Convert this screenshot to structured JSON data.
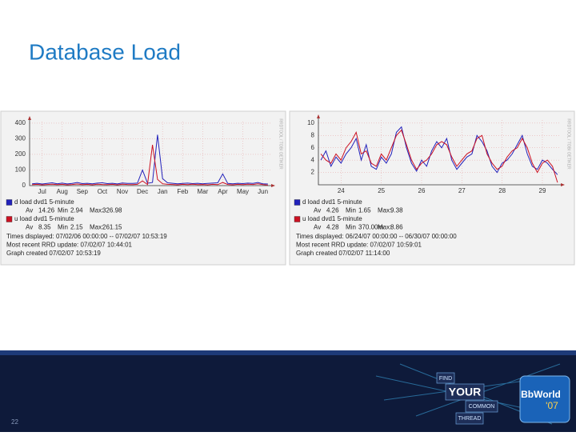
{
  "slide": {
    "title": "Database Load",
    "page_number": "22"
  },
  "branding": {
    "find": "FIND",
    "your": "YOUR",
    "common": "COMMON",
    "thread": "THREAD",
    "event": "BbWorld",
    "year": "'07"
  },
  "chart_data": [
    {
      "type": "line",
      "watermark": "RRDTOOL / TOBI OETIKER",
      "categories": [
        null,
        null,
        "Jul",
        null,
        null,
        null,
        "Aug",
        null,
        null,
        null,
        "Sep",
        null,
        null,
        null,
        "Oct",
        null,
        null,
        null,
        "Nov",
        null,
        null,
        null,
        "Dec",
        null,
        null,
        null,
        "Jan",
        null,
        null,
        null,
        "Feb",
        null,
        null,
        null,
        "Mar",
        null,
        null,
        null,
        "Apr",
        null,
        null,
        null,
        "May",
        null,
        null,
        null,
        "Jun",
        null
      ],
      "ylim": [
        0,
        410
      ],
      "yticks": [
        0,
        100,
        200,
        300,
        400
      ],
      "grid": true,
      "series": [
        {
          "name": "d load dvd1 5-minute",
          "color": "#2222bb",
          "stats": [
            {
              "label": "Av",
              "value": 14.26
            },
            {
              "label": "Min",
              "value": 2.94
            },
            {
              "label": "Max:",
              "value": 326.98
            }
          ],
          "values": [
            12,
            15,
            10,
            14,
            18,
            12,
            16,
            11,
            14,
            20,
            13,
            15,
            12,
            16,
            18,
            13,
            15,
            11,
            17,
            14,
            14,
            16,
            100,
            15,
            20,
            326,
            45,
            18,
            15,
            12,
            14,
            16,
            13,
            15,
            12,
            14,
            16,
            18,
            75,
            14,
            12,
            15,
            13,
            16,
            14,
            20,
            12,
            10
          ]
        },
        {
          "name": "u load dvd1 5-minute",
          "color": "#cc1122",
          "stats": [
            {
              "label": "Av",
              "value": 8.35
            },
            {
              "label": "Min",
              "value": 2.15
            },
            {
              "label": "Max:",
              "value": 261.15
            }
          ],
          "values": [
            6,
            8,
            5,
            7,
            9,
            6,
            8,
            5,
            7,
            10,
            6,
            8,
            5,
            9,
            7,
            6,
            8,
            5,
            9,
            7,
            6,
            8,
            30,
            7,
            261,
            40,
            12,
            8,
            7,
            5,
            8,
            6,
            9,
            6,
            7,
            5,
            8,
            6,
            20,
            7,
            5,
            8,
            6,
            9,
            7,
            12,
            6,
            3
          ]
        }
      ],
      "notes": [
        "Times displayed: 07/02/06 00:00:00 -- 07/02/07 10:53:19",
        "Most recent RRD update: 07/02/07 10:44:01",
        "Graph created 07/02/07 10:53:19"
      ]
    },
    {
      "type": "line",
      "watermark": "RRDTOOL / TOBI OETIKER",
      "categories": [
        null,
        null,
        null,
        null,
        "24",
        null,
        null,
        null,
        null,
        null,
        null,
        null,
        "25",
        null,
        null,
        null,
        null,
        null,
        null,
        null,
        "26",
        null,
        null,
        null,
        null,
        null,
        null,
        null,
        "27",
        null,
        null,
        null,
        null,
        null,
        null,
        null,
        "28",
        null,
        null,
        null,
        null,
        null,
        null,
        null,
        "29",
        null,
        null,
        null
      ],
      "ylim": [
        0,
        10.5
      ],
      "yticks": [
        2,
        4,
        6,
        8,
        10
      ],
      "grid": true,
      "series": [
        {
          "name": "d load dvd1 5-minute",
          "color": "#2222bb",
          "stats": [
            {
              "label": "Av",
              "value": 4.26
            },
            {
              "label": "Min",
              "value": 1.65
            },
            {
              "label": "Max:",
              "value": 9.38
            }
          ],
          "values": [
            4,
            5.5,
            3,
            4.5,
            3.5,
            5,
            6,
            7.5,
            4,
            6.5,
            3,
            2.5,
            4.5,
            3.5,
            5,
            8.5,
            9.38,
            6,
            3.5,
            2.2,
            4,
            3,
            5.5,
            7,
            6,
            7.5,
            4,
            2.5,
            3.5,
            4.5,
            5,
            8,
            7,
            5.5,
            3,
            2,
            3.5,
            4,
            5,
            6.5,
            8,
            5,
            3,
            2.5,
            4,
            3.5,
            2.5,
            1.65
          ]
        },
        {
          "name": "u load dvd1 5-minute",
          "color": "#cc1122",
          "stats": [
            {
              "label": "Av",
              "value": 4.28
            },
            {
              "label": "Min",
              "value": {
                "value": 0.37,
                "label": "370.00m"
              }
            },
            {
              "label": "Max:",
              "value": 8.86
            }
          ],
          "values": [
            5,
            4,
            3.5,
            5,
            4,
            6,
            7,
            8.5,
            5,
            5.5,
            3.5,
            3,
            5,
            4,
            6,
            8,
            8.86,
            6.5,
            4,
            2.5,
            3.5,
            4,
            5,
            6.5,
            7,
            6.5,
            4.5,
            3,
            4,
            5,
            5.5,
            7.5,
            8,
            5,
            3.5,
            2.5,
            3,
            4.5,
            5.5,
            6,
            7.5,
            6,
            3.5,
            2,
            3.5,
            4,
            3,
            0.37
          ]
        }
      ],
      "notes": [
        "Times displayed: 06/24/07 00:00:00 -- 06/30/07 00:00:00",
        "Most recent RRD update: 07/02/07 10:59:01",
        "Graph created 07/02/07 11:14:00"
      ]
    }
  ]
}
